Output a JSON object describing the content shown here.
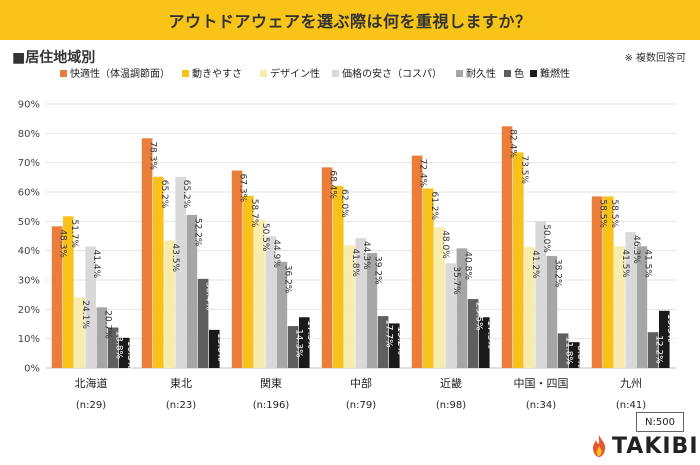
{
  "header": {
    "title": "アウトドアウェアを選ぶ際は何を重視しますか？",
    "subtitle": "■居住地域別",
    "note": "※ 複数回答可",
    "banner_color": "#f7c417"
  },
  "footer": {
    "n_total": "N:500",
    "brand": "TAKIBI",
    "brand_icon": "flame-icon",
    "brand_color": "#e8542f"
  },
  "chart_data": {
    "type": "bar",
    "title": "アウトドアウェアを選ぶ際は何を重視しますか？",
    "xlabel": "",
    "ylabel": "",
    "ylim": [
      0,
      90
    ],
    "yticks": [
      "0%",
      "10%",
      "20%",
      "30%",
      "40%",
      "50%",
      "60%",
      "70%",
      "80%",
      "90%"
    ],
    "grid": true,
    "legend_position": "top-left",
    "categories": [
      "北海道",
      "東北",
      "関東",
      "中部",
      "近畿",
      "中国・四国",
      "九州"
    ],
    "category_sublabels": [
      "(n:29)",
      "(n:23)",
      "(n:196)",
      "(n:79)",
      "(n:98)",
      "(n:34)",
      "(n:41)"
    ],
    "series": [
      {
        "name": "快適性（体温調節面）",
        "color": "#ea7d3a",
        "values": [
          48.3,
          78.3,
          67.3,
          68.4,
          72.4,
          82.4,
          58.5
        ],
        "labels": [
          "48.3%",
          "78.3%",
          "67.3%",
          "68.4%",
          "72.4%",
          "82.4%",
          "58.5%"
        ]
      },
      {
        "name": "動きやすさ",
        "color": "#f8c21a",
        "values": [
          51.7,
          65.2,
          58.7,
          62.0,
          61.2,
          73.5,
          58.5
        ],
        "labels": [
          "51.7%",
          "65.2%",
          "58.7%",
          "62.0%",
          "61.2%",
          "73.5%",
          "58.5%"
        ]
      },
      {
        "name": "デザイン性",
        "color": "#f7ecab",
        "values": [
          24.1,
          43.5,
          50.5,
          41.8,
          48.0,
          41.2,
          41.5
        ],
        "labels": [
          "24.1%",
          "43.5%",
          "50.5%",
          "41.8%",
          "48.0%",
          "41.2%",
          "41.5%"
        ]
      },
      {
        "name": "価格の安さ（コスパ）",
        "color": "#d9d9d9",
        "values": [
          41.4,
          65.2,
          44.9,
          44.3,
          35.7,
          50.0,
          46.3
        ],
        "labels": [
          "41.4%",
          "65.2%",
          "44.9%",
          "44.3%",
          "35.7%",
          "50.0%",
          "46.3%"
        ]
      },
      {
        "name": "耐久性",
        "color": "#a6a6a6",
        "values": [
          20.7,
          52.2,
          36.2,
          39.2,
          40.8,
          38.2,
          41.5
        ],
        "labels": [
          "20.7%",
          "52.2%",
          "36.2%",
          "39.2%",
          "40.8%",
          "38.2%",
          "41.5%"
        ]
      },
      {
        "name": "色",
        "color": "#5f5f5f",
        "values": [
          13.8,
          30.4,
          14.3,
          17.7,
          23.5,
          11.8,
          12.2
        ],
        "labels": [
          "13.8%",
          "30.4%",
          "14.3%",
          "17.7%",
          "23.5%",
          "11.8%",
          "12.2%"
        ]
      },
      {
        "name": "難燃性",
        "color": "#1a1a1a",
        "values": [
          10.3,
          13.0,
          17.3,
          15.2,
          17.3,
          8.8,
          19.5
        ],
        "labels": [
          "10.3%",
          "13.0%",
          "17.3%",
          "15.2%",
          "17.3%",
          "8.8%",
          "19.5%"
        ]
      }
    ]
  }
}
